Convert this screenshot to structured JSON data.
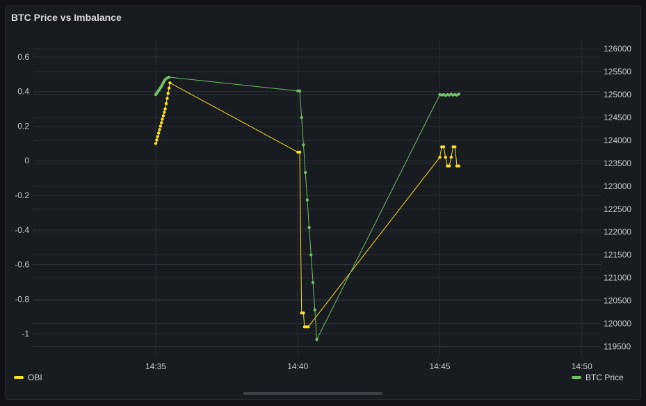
{
  "panel": {
    "title": "BTC Price vs Imbalance"
  },
  "colors": {
    "obi": "#fade2a",
    "btc": "#73bf69",
    "grid": "#2c2f35",
    "background": "#181b1f"
  },
  "legend": [
    {
      "label": "OBI",
      "color": "#fade2a",
      "placement": "bottom-left"
    },
    {
      "label": "BTC Price",
      "color": "#73bf69",
      "placement": "bottom-right"
    }
  ],
  "chart_data": {
    "type": "line",
    "title": "BTC Price vs Imbalance",
    "grid": true,
    "x_axis": {
      "min": "14:30:40",
      "max": "14:50:40",
      "tick_labels": [
        "14:35",
        "14:40",
        "14:45",
        "14:50"
      ]
    },
    "y_left": {
      "min": -1.1,
      "max": 0.7,
      "tick_labels": [
        "0.6",
        "0.4",
        "0.2",
        "0",
        "-0.2",
        "-0.4",
        "-0.6",
        "-0.8",
        "-1"
      ],
      "tick_values": [
        0.6,
        0.4,
        0.2,
        0,
        -0.2,
        -0.4,
        -0.6,
        -0.8,
        -1
      ]
    },
    "y_right": {
      "min": 119400,
      "max": 126200,
      "tick_labels": [
        "126000",
        "125500",
        "125000",
        "124500",
        "124000",
        "123500",
        "123000",
        "122500",
        "122000",
        "121500",
        "121000",
        "120500",
        "120000",
        "119500"
      ],
      "tick_values": [
        126000,
        125500,
        125000,
        124500,
        124000,
        123500,
        123000,
        122500,
        122000,
        121500,
        121000,
        120500,
        120000,
        119500
      ]
    },
    "series": [
      {
        "name": "OBI",
        "axis": "left",
        "points": [
          [
            "14:35:00",
            0.1
          ],
          [
            "14:35:02",
            0.12
          ],
          [
            "14:35:04",
            0.14
          ],
          [
            "14:35:06",
            0.16
          ],
          [
            "14:35:08",
            0.18
          ],
          [
            "14:35:10",
            0.2
          ],
          [
            "14:35:12",
            0.22
          ],
          [
            "14:35:14",
            0.24
          ],
          [
            "14:35:16",
            0.26
          ],
          [
            "14:35:18",
            0.28
          ],
          [
            "14:35:20",
            0.3
          ],
          [
            "14:35:22",
            0.33
          ],
          [
            "14:35:24",
            0.36
          ],
          [
            "14:35:26",
            0.39
          ],
          [
            "14:35:28",
            0.42
          ],
          [
            "14:35:30",
            0.45
          ],
          [
            "14:40:00",
            0.05
          ],
          [
            "14:40:04",
            0.05
          ],
          [
            "14:40:08",
            -0.88
          ],
          [
            "14:40:12",
            -0.88
          ],
          [
            "14:40:14",
            -0.96
          ],
          [
            "14:40:18",
            -0.96
          ],
          [
            "14:40:22",
            -0.96
          ],
          [
            "14:45:00",
            0.02
          ],
          [
            "14:45:04",
            0.08
          ],
          [
            "14:45:08",
            0.08
          ],
          [
            "14:45:12",
            0.02
          ],
          [
            "14:45:16",
            -0.03
          ],
          [
            "14:45:20",
            -0.03
          ],
          [
            "14:45:24",
            0.02
          ],
          [
            "14:45:28",
            0.08
          ],
          [
            "14:45:32",
            0.08
          ],
          [
            "14:45:36",
            -0.03
          ],
          [
            "14:45:40",
            -0.03
          ]
        ]
      },
      {
        "name": "BTC Price",
        "axis": "right",
        "points": [
          [
            "14:35:00",
            125000
          ],
          [
            "14:35:02",
            125030
          ],
          [
            "14:35:04",
            125060
          ],
          [
            "14:35:06",
            125090
          ],
          [
            "14:35:08",
            125120
          ],
          [
            "14:35:10",
            125150
          ],
          [
            "14:35:12",
            125180
          ],
          [
            "14:35:14",
            125220
          ],
          [
            "14:35:16",
            125260
          ],
          [
            "14:35:18",
            125300
          ],
          [
            "14:35:20",
            125330
          ],
          [
            "14:35:24",
            125360
          ],
          [
            "14:35:28",
            125380
          ],
          [
            "14:40:00",
            125080
          ],
          [
            "14:40:04",
            125080
          ],
          [
            "14:40:08",
            124500
          ],
          [
            "14:40:12",
            123900
          ],
          [
            "14:40:16",
            123300
          ],
          [
            "14:40:20",
            122700
          ],
          [
            "14:40:24",
            122100
          ],
          [
            "14:40:28",
            121500
          ],
          [
            "14:40:32",
            120900
          ],
          [
            "14:40:36",
            120300
          ],
          [
            "14:40:40",
            119650
          ],
          [
            "14:45:00",
            125000
          ],
          [
            "14:45:04",
            124990
          ],
          [
            "14:45:08",
            125000
          ],
          [
            "14:45:12",
            124980
          ],
          [
            "14:45:16",
            125000
          ],
          [
            "14:45:20",
            124990
          ],
          [
            "14:45:24",
            125010
          ],
          [
            "14:45:28",
            124990
          ],
          [
            "14:45:32",
            125000
          ],
          [
            "14:45:36",
            124990
          ],
          [
            "14:45:40",
            125010
          ]
        ]
      }
    ]
  }
}
